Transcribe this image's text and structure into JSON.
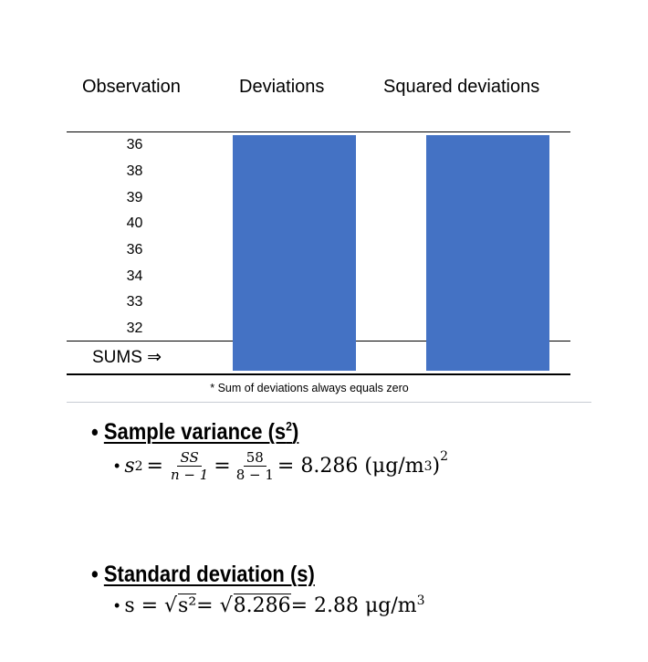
{
  "table": {
    "headers": [
      "Observation",
      "Deviations",
      "Squared deviations"
    ],
    "observations": [
      "36",
      "38",
      "39",
      "40",
      "36",
      "34",
      "33",
      "32"
    ],
    "sums_label": "SUMS ⇒",
    "footnote": "* Sum of deviations always equals zero",
    "box_color": "#4472C4"
  },
  "variance": {
    "title": "Sample variance (s",
    "title_sup": "2",
    "title_end": ")",
    "lhs": "s",
    "lhs_sup": "2",
    "num1": "SS",
    "den1": "n − 1",
    "num2": "58",
    "den2": "8 − 1",
    "result": "= 8.286 (μg/m",
    "result_sup": "3",
    "result_end": ")",
    "outer_sup": "2"
  },
  "stdev": {
    "title": "Standard deviation (s)",
    "lhs": "s = √",
    "rad1": "s²",
    "mid": " = √",
    "rad2": "8.286",
    "result": " = 2.88 μg/m",
    "result_sup": "3"
  }
}
